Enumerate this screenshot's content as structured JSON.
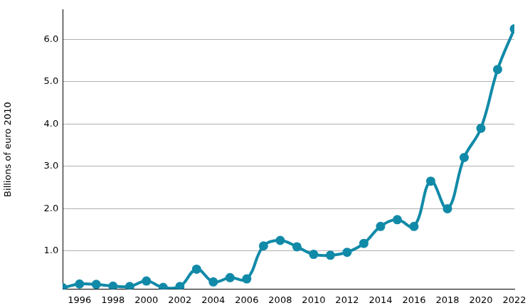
{
  "chart_data": {
    "type": "line",
    "y_label": "Billions of euro 2010",
    "x": [
      1995,
      1996,
      1997,
      1998,
      1999,
      2000,
      2001,
      2002,
      2003,
      2004,
      2005,
      2006,
      2007,
      2008,
      2009,
      2010,
      2011,
      2012,
      2013,
      2014,
      2015,
      2016,
      2017,
      2018,
      2019,
      2020,
      2021,
      2022
    ],
    "values": [
      0.13,
      0.22,
      0.21,
      0.17,
      0.16,
      0.29,
      0.14,
      0.16,
      0.57,
      0.27,
      0.37,
      0.34,
      1.12,
      1.25,
      1.1,
      0.92,
      0.9,
      0.97,
      1.18,
      1.58,
      1.74,
      1.58,
      2.65,
      2.0,
      3.21,
      3.9,
      5.29,
      6.25
    ],
    "color": "#118aa8",
    "marker": "circle",
    "xlim": [
      1995,
      2022
    ],
    "xticks": [
      1996,
      1998,
      2000,
      2002,
      2004,
      2006,
      2008,
      2010,
      2012,
      2014,
      2016,
      2018,
      2020,
      2022
    ],
    "ylim": [
      0.1,
      6.7
    ],
    "yticks": [
      {
        "value": 1,
        "label": "1.0"
      },
      {
        "value": 2,
        "label": "2.0"
      },
      {
        "value": 3,
        "label": "3.0"
      },
      {
        "value": 4,
        "label": "4.0"
      },
      {
        "value": 5,
        "label": "5.0"
      },
      {
        "value": 6,
        "label": "6.0"
      }
    ],
    "grid": true
  }
}
